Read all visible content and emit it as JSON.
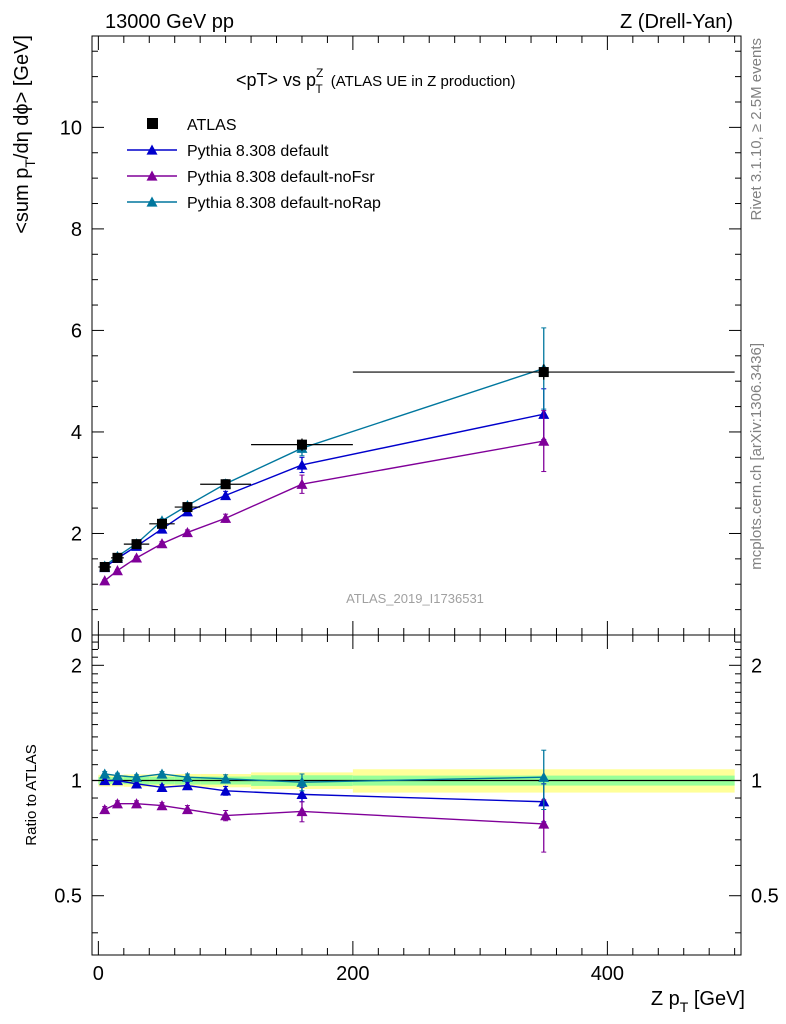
{
  "header": {
    "left": "13000 GeV pp",
    "right": "Z (Drell-Yan)"
  },
  "side_labels": {
    "rivet": "Rivet 3.1.10, ≥ 2.5M events",
    "mcplots": "mcplots.cern.ch [arXiv:1306.3436]"
  },
  "watermark": "ATLAS_2019_I1736531",
  "colors": {
    "atlas": "#000000",
    "default": "#0000cc",
    "noFsr": "#800099",
    "noRap": "#00779e",
    "band_inner": "#99ff99",
    "band_outer": "#ffff99"
  },
  "chart_data": [
    {
      "type": "line",
      "panel": "main",
      "title_main": "<pT> vs p",
      "title_sup": "Z",
      "title_sub": "T",
      "title_rest": "(ATLAS UE in Z production)",
      "ylabel_parts": [
        "<sum p",
        "T",
        "/dη dϕ> [GeV]"
      ],
      "xlim": [
        -5,
        505
      ],
      "ylim": [
        0,
        11.8
      ],
      "yticks": [
        0,
        2,
        4,
        6,
        8,
        10
      ],
      "yticklabels": [
        "0",
        "2",
        "4",
        "6",
        "8",
        "10"
      ],
      "legend_position": "top-left",
      "x": [
        5,
        15,
        30,
        50,
        70,
        100,
        160,
        350
      ],
      "xerr": [
        5,
        5,
        10,
        10,
        10,
        20,
        40,
        150
      ],
      "series": [
        {
          "name": "ATLAS",
          "key": "atlas",
          "marker": "square",
          "values": [
            1.34,
            1.52,
            1.79,
            2.19,
            2.52,
            2.97,
            3.75,
            5.18
          ],
          "err": [
            0.03,
            0.03,
            0.04,
            0.05,
            0.06,
            0.07,
            0.12,
            0.15
          ]
        },
        {
          "name": "Pythia 8.308 default",
          "key": "default",
          "marker": "triangle",
          "values": [
            1.33,
            1.51,
            1.75,
            2.09,
            2.43,
            2.75,
            3.35,
            4.35
          ],
          "err": [
            0.02,
            0.02,
            0.03,
            0.04,
            0.05,
            0.08,
            0.15,
            0.5
          ]
        },
        {
          "name": "Pythia 8.308 default-noFsr",
          "key": "noFsr",
          "marker": "triangle",
          "values": [
            1.07,
            1.27,
            1.52,
            1.8,
            2.02,
            2.3,
            2.97,
            3.82
          ],
          "err": [
            0.02,
            0.02,
            0.03,
            0.04,
            0.05,
            0.08,
            0.18,
            0.6
          ]
        },
        {
          "name": "Pythia 8.308 default-noRap",
          "key": "noRap",
          "marker": "triangle",
          "values": [
            1.36,
            1.55,
            1.8,
            2.25,
            2.55,
            2.98,
            3.68,
            5.25
          ],
          "err": [
            0.02,
            0.02,
            0.03,
            0.04,
            0.05,
            0.08,
            0.15,
            0.8
          ]
        }
      ]
    },
    {
      "type": "line",
      "panel": "ratio",
      "ylabel": "Ratio to ATLAS",
      "xlabel_parts": [
        "Z p",
        "T",
        " [GeV]"
      ],
      "log_y": true,
      "xlim": [
        -5,
        505
      ],
      "ylim": [
        0.35,
        2.4
      ],
      "xticks": [
        0,
        200,
        400
      ],
      "xticklabels": [
        "0",
        "200",
        "400"
      ],
      "yticks": [
        0.5,
        1,
        2
      ],
      "yticklabels": [
        "0.5",
        "1",
        "2"
      ],
      "band_bins": [
        [
          0,
          10
        ],
        [
          10,
          20
        ],
        [
          20,
          40
        ],
        [
          40,
          60
        ],
        [
          60,
          80
        ],
        [
          80,
          120
        ],
        [
          120,
          200
        ],
        [
          200,
          500
        ]
      ],
      "band_inner": [
        0.022,
        0.02,
        0.022,
        0.023,
        0.024,
        0.024,
        0.032,
        0.03
      ],
      "band_outer": [
        0.035,
        0.035,
        0.037,
        0.038,
        0.04,
        0.04,
        0.05,
        0.07
      ],
      "series": [
        {
          "name": "Pythia 8.308 default",
          "key": "default",
          "values": [
            1.0,
            1.0,
            0.98,
            0.96,
            0.97,
            0.94,
            0.92,
            0.88
          ],
          "err": [
            0.015,
            0.015,
            0.015,
            0.015,
            0.02,
            0.025,
            0.04,
            0.1
          ]
        },
        {
          "name": "Pythia 8.308 default-noFsr",
          "key": "noFsr",
          "values": [
            0.84,
            0.87,
            0.87,
            0.86,
            0.84,
            0.81,
            0.83,
            0.77
          ],
          "err": [
            0.015,
            0.015,
            0.015,
            0.015,
            0.02,
            0.025,
            0.05,
            0.12
          ]
        },
        {
          "name": "Pythia 8.308 default-noRap",
          "key": "noRap",
          "values": [
            1.04,
            1.03,
            1.02,
            1.04,
            1.02,
            1.01,
            0.99,
            1.02
          ],
          "err": [
            0.015,
            0.015,
            0.015,
            0.015,
            0.02,
            0.025,
            0.05,
            0.18
          ]
        }
      ]
    }
  ]
}
